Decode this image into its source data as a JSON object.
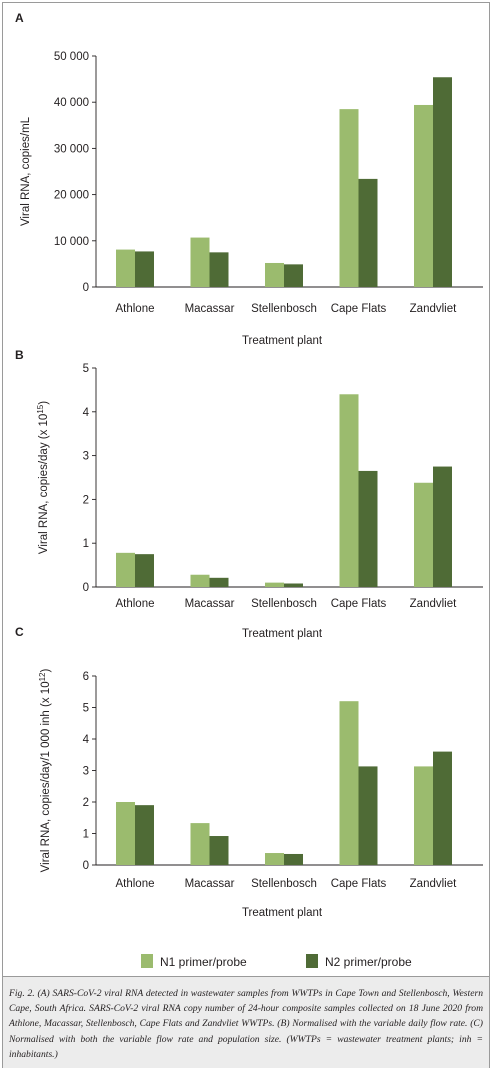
{
  "colors": {
    "n1": "#9bbb6e",
    "n2": "#4f6b36",
    "axis": "#231f20"
  },
  "chart_data": [
    {
      "type": "bar",
      "panel_label": "A",
      "title": "",
      "categories": [
        "Athlone",
        "Macassar",
        "Stellenbosch",
        "Cape Flats",
        "Zandvliet"
      ],
      "series": [
        {
          "name": "N1 primer/probe",
          "values": [
            8100,
            10700,
            5200,
            38500,
            39400
          ]
        },
        {
          "name": "N2 primer/probe",
          "values": [
            7700,
            7500,
            4900,
            23400,
            45400
          ]
        }
      ],
      "xlabel": "Treatment plant",
      "ylabel": "Viral RNA, copies/mL",
      "ylabel_sup": "",
      "ylabel_suffix": "",
      "ylim": [
        0,
        50000
      ],
      "yticks": [
        0,
        10000,
        20000,
        30000,
        40000,
        50000
      ],
      "ytick_labels": [
        "0",
        "10 000",
        "20 000",
        "30 000",
        "40 000",
        "50 000"
      ]
    },
    {
      "type": "bar",
      "panel_label": "B",
      "title": "",
      "categories": [
        "Athlone",
        "Macassar",
        "Stellenbosch",
        "Cape Flats",
        "Zandvliet"
      ],
      "series": [
        {
          "name": "N1 primer/probe",
          "values": [
            0.78,
            0.28,
            0.1,
            4.4,
            2.38
          ]
        },
        {
          "name": "N2 primer/probe",
          "values": [
            0.75,
            0.21,
            0.08,
            2.65,
            2.75
          ]
        }
      ],
      "xlabel": "Treatment plant",
      "ylabel": "Viral RNA, copies/day (x 10",
      "ylabel_sup": "15",
      "ylabel_suffix": ")",
      "ylim": [
        0,
        5
      ],
      "yticks": [
        0,
        1,
        2,
        3,
        4,
        5
      ],
      "ytick_labels": [
        "0",
        "1",
        "2",
        "3",
        "4",
        "5"
      ]
    },
    {
      "type": "bar",
      "panel_label": "C",
      "title": "",
      "categories": [
        "Athlone",
        "Macassar",
        "Stellenbosch",
        "Cape Flats",
        "Zandvliet"
      ],
      "series": [
        {
          "name": "N1 primer/probe",
          "values": [
            2.0,
            1.33,
            0.38,
            5.2,
            3.13
          ]
        },
        {
          "name": "N2 primer/probe",
          "values": [
            1.9,
            0.92,
            0.35,
            3.13,
            3.6
          ]
        }
      ],
      "xlabel": "Treatment plant",
      "ylabel": "Viral RNA, copies/day/1 000 inh (x 10",
      "ylabel_sup": "12",
      "ylabel_suffix": ")",
      "ylim": [
        0,
        6
      ],
      "yticks": [
        0,
        1,
        2,
        3,
        4,
        5,
        6
      ],
      "ytick_labels": [
        "0",
        "1",
        "2",
        "3",
        "4",
        "5",
        "6"
      ]
    }
  ],
  "legend": [
    "N1 primer/probe",
    "N2 primer/probe"
  ],
  "caption": "Fig. 2. (A) SARS-CoV-2 viral RNA detected in wastewater samples from WWTPs in Cape Town and Stellenbosch, Western Cape, South Africa. SARS-CoV-2 viral RNA copy number of 24-hour composite samples collected on 18 June 2020 from Athlone, Macassar, Stellenbosch, Cape Flats and Zandvliet WWTPs. (B) Normalised with the variable daily flow rate. (C) Normalised with both the variable flow rate and population size. (WWTPs = wastewater treatment plants; inh = inhabitants.)"
}
